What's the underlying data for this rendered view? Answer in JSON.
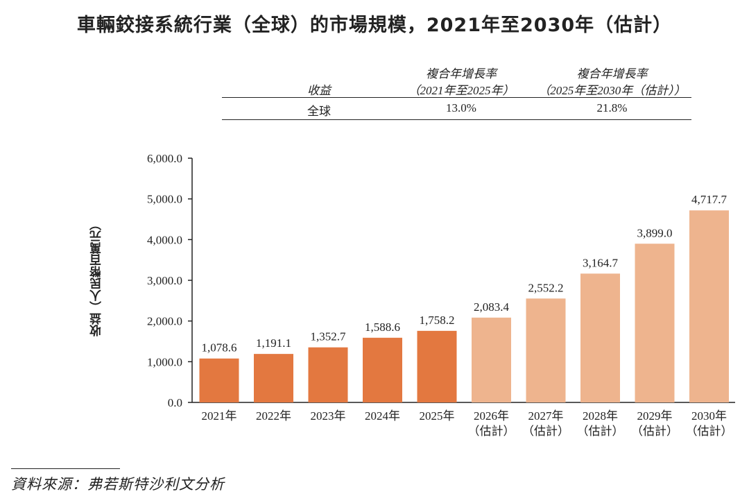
{
  "title": "車輛鉸接系統行業（全球）的市場規模，2021年至2030年（估計）",
  "table": {
    "col1_header": "收益",
    "col2_header_line1": "複合年增長率",
    "col2_header_line2": "（2021年至2025年）",
    "col3_header_line1": "複合年增長率",
    "col3_header_line2": "（2025年至2030年（估計））",
    "row_label": "全球",
    "row_value1": "13.0%",
    "row_value2": "21.8%"
  },
  "source": "資料來源：弗若斯特沙利文分析",
  "chart_data": {
    "type": "bar",
    "ylabel": "收益（人民幣百萬元）",
    "ylim": [
      0,
      6000
    ],
    "yticks": [
      "0.0",
      "1,000.0",
      "2,000.0",
      "3,000.0",
      "4,000.0",
      "5,000.0",
      "6,000.0"
    ],
    "categories": [
      [
        "2021年"
      ],
      [
        "2022年"
      ],
      [
        "2023年"
      ],
      [
        "2024年"
      ],
      [
        "2025年"
      ],
      [
        "2026年",
        "（估計）"
      ],
      [
        "2027年",
        "（估計）"
      ],
      [
        "2028年",
        "（估計）"
      ],
      [
        "2029年",
        "（估計）"
      ],
      [
        "2030年",
        "（估計）"
      ]
    ],
    "values": [
      1078.6,
      1191.1,
      1352.7,
      1588.6,
      1758.2,
      2083.4,
      2552.2,
      3164.7,
      3899.0,
      4717.7
    ],
    "value_labels": [
      "1,078.6",
      "1,191.1",
      "1,352.7",
      "1,588.6",
      "1,758.2",
      "2,083.4",
      "2,552.2",
      "3,164.7",
      "3,899.0",
      "4,717.7"
    ],
    "colors": {
      "actual": "#e37840",
      "estimate": "#eeb48e",
      "axis": "#222222"
    },
    "estimate_start_index": 5
  }
}
